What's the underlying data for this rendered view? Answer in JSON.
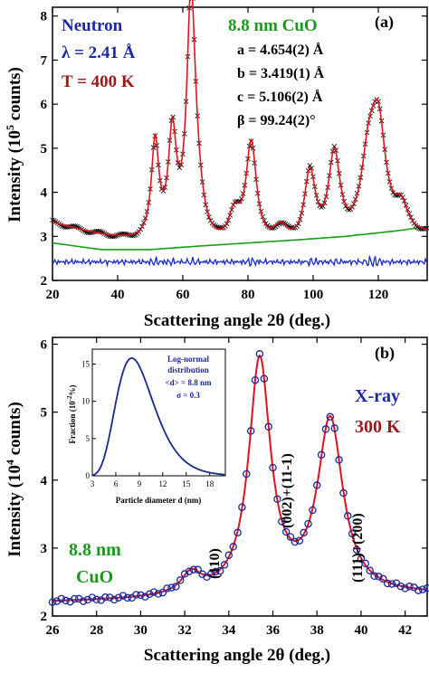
{
  "colors": {
    "fit": "#e0141e",
    "neutron_data": "#111111",
    "background_curve": "#13a013",
    "difference": "#1a2ad0",
    "xray_markers": "#1a2a9c",
    "inset_curve": "#1a2a8c",
    "label_blue": "#1a2aa8",
    "label_red": "#9b1a1a",
    "label_green": "#1a9a1a"
  },
  "chart_data": [
    {
      "type": "line",
      "panel": "(a)",
      "xlabel": "Scattering angle 2θ (deg.)",
      "ylabel": "Intensity (10⁵ counts)",
      "xlim": [
        20,
        135
      ],
      "ylim": [
        2,
        8.2
      ],
      "xticks": [
        20,
        40,
        60,
        80,
        100,
        120
      ],
      "yticks": [
        2,
        3,
        4,
        5,
        6,
        7,
        8
      ],
      "annotations": {
        "title_left": "Neutron",
        "wavelength": "λ = 2.41 Å",
        "temperature": "T = 400 K",
        "sample": "8.8 nm CuO",
        "a": "a = 4.654(2) Å",
        "b": "b = 3.419(1) Å",
        "c": "c = 5.106(2) Å",
        "beta": "β = 99.24(2)°"
      },
      "base": {
        "a": 3.3,
        "b": -0.0225,
        "c": 0.00017
      },
      "peaks": [
        {
          "x": 51.5,
          "y": 2.2,
          "w": 1.4
        },
        {
          "x": 56.8,
          "y": 2.35,
          "w": 1.5
        },
        {
          "x": 62.5,
          "y": 5.1,
          "w": 1.55
        },
        {
          "x": 64.0,
          "y": 1.0,
          "w": 2.5
        },
        {
          "x": 75.8,
          "y": 0.7,
          "w": 2.2
        },
        {
          "x": 81.0,
          "y": 2.35,
          "w": 2.0
        },
        {
          "x": 90.0,
          "y": 0.45,
          "w": 3.0
        },
        {
          "x": 99.0,
          "y": 1.65,
          "w": 2.1
        },
        {
          "x": 106.5,
          "y": 2.0,
          "w": 2.2
        },
        {
          "x": 117.0,
          "y": 1.6,
          "w": 2.8
        },
        {
          "x": 120.0,
          "y": 2.4,
          "w": 2.8
        },
        {
          "x": 127.0,
          "y": 0.6,
          "w": 2.5
        }
      ],
      "background": {
        "x": [
          20,
          35,
          50,
          65,
          80,
          95,
          110,
          125,
          135
        ],
        "y": [
          2.85,
          2.7,
          2.7,
          2.78,
          2.85,
          2.92,
          3.0,
          3.12,
          3.22
        ]
      },
      "difference_level": 2.42
    },
    {
      "type": "scatter",
      "panel": "(b)",
      "xlabel": "Scattering angle 2θ (deg.)",
      "ylabel": "Intensity (10⁴ counts)",
      "xlim": [
        26,
        43
      ],
      "ylim": [
        2,
        6.1
      ],
      "xticks": [
        26,
        28,
        30,
        32,
        34,
        36,
        38,
        40,
        42
      ],
      "yticks": [
        2,
        3,
        4,
        5,
        6
      ],
      "annotations": {
        "method": "X-ray",
        "temperature": "300 K",
        "sample_size": "8.8 nm",
        "sample": "CuO",
        "peak_110": "(110)",
        "peak_002": "(002)+(11-1)",
        "peak_111": "(111)+(200)"
      },
      "base": 2.2,
      "peaks": [
        {
          "x": 32.3,
          "y": 0.3,
          "w": 0.55
        },
        {
          "x": 35.4,
          "y": 3.45,
          "w": 0.6
        },
        {
          "x": 38.6,
          "y": 2.55,
          "w": 0.7
        }
      ],
      "slope": 0.006
    },
    {
      "type": "line",
      "panel": "inset",
      "xlabel": "Particle diameter d (nm)",
      "ylabel": "Fraction (10⁻²%)",
      "xlim": [
        3,
        20
      ],
      "ylim": [
        0,
        17
      ],
      "xticks": [
        3,
        6,
        9,
        12,
        15,
        18
      ],
      "yticks": [
        0,
        5,
        10,
        15
      ],
      "annotations": {
        "line1": "Log-normal",
        "line2": "distribution",
        "mean": "<d> = 8.8 nm",
        "sigma": "σ = 0.3"
      },
      "median_d": 8.8,
      "sigma": 0.3,
      "peak_value": 15.8
    }
  ]
}
